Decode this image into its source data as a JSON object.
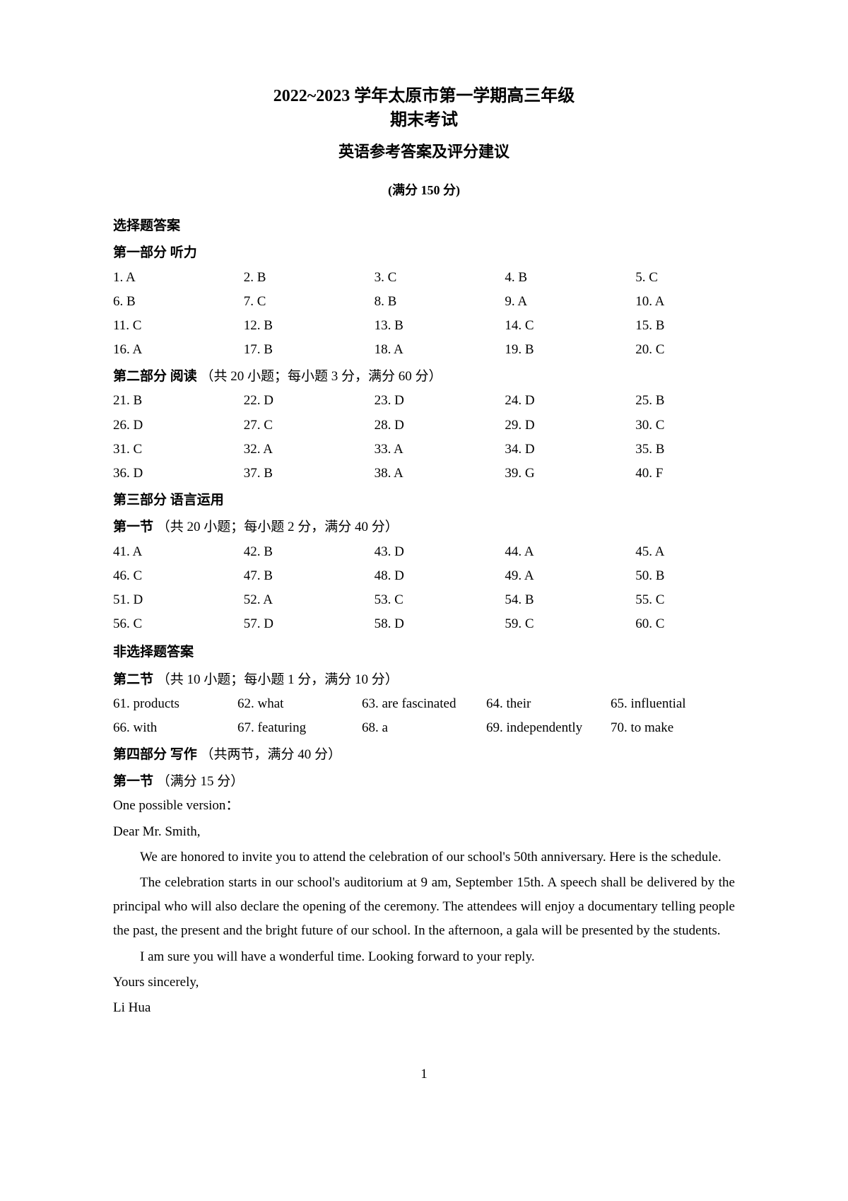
{
  "header": {
    "title_line1": "2022~2023 学年太原市第一学期高三年级",
    "title_line2": "期末考试",
    "subtitle": "英语参考答案及评分建议",
    "fullmark": "(满分 150 分)"
  },
  "mc_heading": "选择题答案",
  "part1": {
    "label": "第一部分   听力",
    "rows": [
      [
        " 1. A",
        "2. B",
        "3. C",
        "4. B",
        "5. C"
      ],
      [
        " 6. B",
        "7. C",
        "8. B",
        "9. A",
        "10. A"
      ],
      [
        "11. C",
        "12. B",
        "13. B",
        "14. C",
        "15. B"
      ],
      [
        "16. A",
        "17. B",
        "18. A",
        "19. B",
        "20. C"
      ]
    ]
  },
  "part2": {
    "label": "第二部分   阅读",
    "desc": "（共 20 小题；每小题 3 分，满分 60 分）",
    "rows": [
      [
        "21. B",
        "22. D",
        "23. D",
        "24. D",
        "25. B"
      ],
      [
        "26. D",
        "27. C",
        "28. D",
        "29. D",
        "30. C"
      ],
      [
        "31. C",
        "32. A",
        "33. A",
        "34. D",
        "35. B"
      ],
      [
        "36. D",
        "37. B",
        "38. A",
        "39. G",
        "40. F"
      ]
    ]
  },
  "part3": {
    "label": "第三部分   语言运用",
    "sec1_label": "第一节",
    "sec1_desc": "（共 20 小题；每小题 2 分，满分 40 分）",
    "rows": [
      [
        "41. A",
        "42. B",
        "43. D",
        "44. A",
        "45. A"
      ],
      [
        "46. C",
        "47. B",
        "48. D",
        "49. A",
        "50. B"
      ],
      [
        "51. D",
        "52. A",
        "53. C",
        "54. B",
        "55. C"
      ],
      [
        "56. C",
        "57. D",
        "58. D",
        "59. C",
        "60. C"
      ]
    ]
  },
  "nonmc_heading": "非选择题答案",
  "sec2": {
    "label": "第二节",
    "desc": "（共 10 小题；每小题 1 分，满分 10 分）",
    "rows": [
      [
        "61. products",
        "62. what",
        "63. are fascinated",
        "64. their",
        "65. influential"
      ],
      [
        "66. with",
        "67. featuring",
        "68. a",
        "69. independently",
        "70. to make"
      ]
    ]
  },
  "part4": {
    "label": "第四部分   写作",
    "desc": "（共两节，满分 40 分）",
    "sec1_label": "第一节",
    "sec1_desc": "（满分 15 分）",
    "possible_version": "One possible version：",
    "letter": {
      "greeting": "Dear Mr. Smith,",
      "p1": "We are honored to invite you to attend the celebration of our school's 50th anniversary. Here is the schedule.",
      "p2": "The celebration starts in our school's auditorium at 9 am, September 15th. A speech shall be delivered by the principal who will also declare the opening of the ceremony. The attendees will enjoy a documentary telling people the past, the present and the bright future of our school. In the afternoon, a gala will be presented by the students.",
      "p3": "I am sure you will have a wonderful time. Looking forward to your reply.",
      "closing1": "Yours sincerely,",
      "closing2": "Li Hua"
    }
  },
  "page_number": "1"
}
